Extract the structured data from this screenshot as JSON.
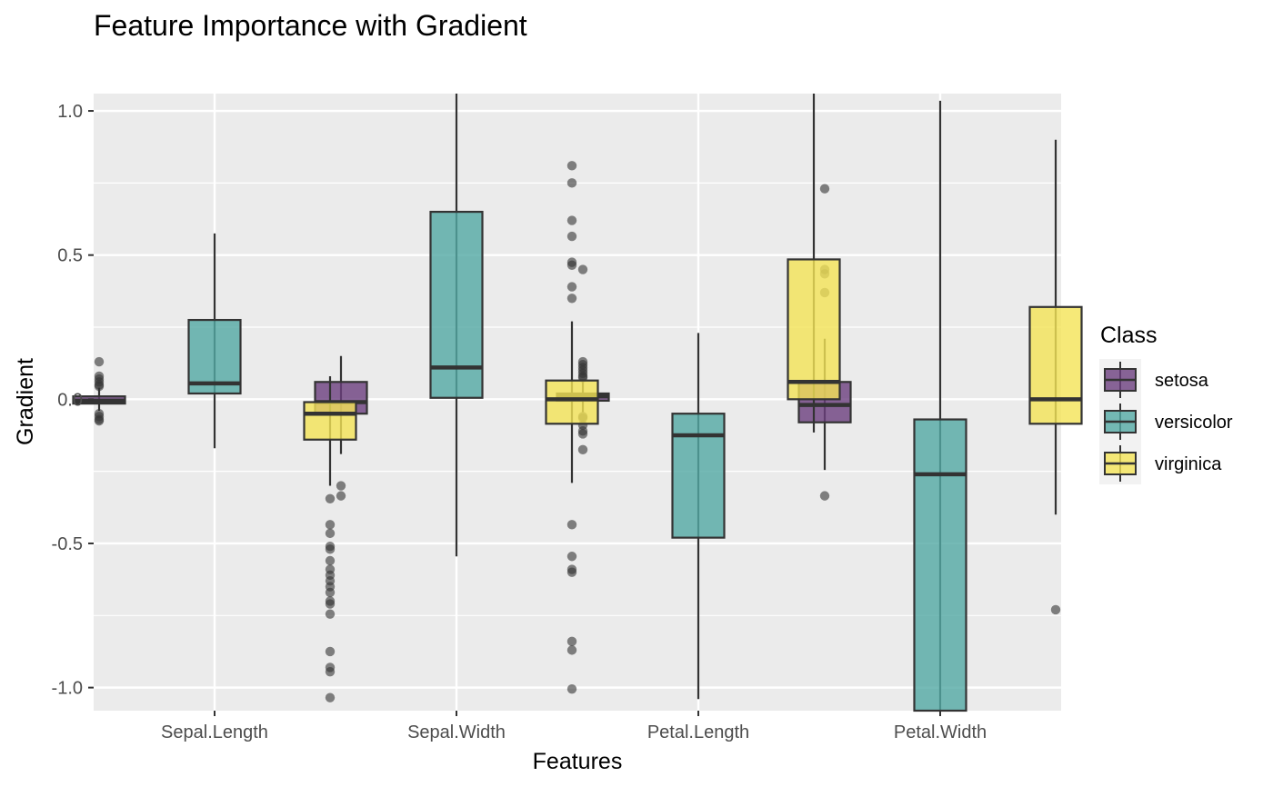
{
  "chart_data": {
    "type": "boxplot",
    "title": "Feature Importance with Gradient",
    "xlabel": "Features",
    "ylabel": "Gradient",
    "ylim": [
      -1.08,
      1.06
    ],
    "yticks": [
      1.0,
      0.5,
      0.0,
      -0.5,
      -1.0
    ],
    "ytick_labels": [
      "1.0",
      "0.5",
      "0.0",
      "-0.5",
      "-1.0"
    ],
    "categories": [
      "Sepal.Length",
      "Sepal.Width",
      "Petal.Length",
      "Petal.Width"
    ],
    "legend": {
      "title": "Class",
      "position": "right",
      "items": [
        {
          "label": "setosa",
          "color": "#6b3f7e"
        },
        {
          "label": "versicolor",
          "color": "#53a9a4"
        },
        {
          "label": "virginica",
          "color": "#f4e456"
        }
      ]
    },
    "grid": true,
    "series": [
      {
        "name": "setosa",
        "color": "#6b3f7e",
        "boxes": [
          {
            "q1": -0.015,
            "median": -0.005,
            "q3": 0.01,
            "whisker_low": -0.04,
            "whisker_high": 0.04,
            "outliers": [
              0.13,
              0.08,
              0.07,
              0.06,
              0.05,
              0.045,
              -0.05,
              -0.06,
              -0.07,
              -0.075
            ]
          },
          {
            "q1": -0.05,
            "median": -0.01,
            "q3": 0.06,
            "whisker_low": -0.19,
            "whisker_high": 0.15,
            "outliers": [
              -0.3,
              -0.335
            ]
          },
          {
            "q1": -0.005,
            "median": 0.01,
            "q3": 0.02,
            "whisker_low": -0.045,
            "whisker_high": 0.06,
            "outliers": [
              0.45,
              0.13,
              0.12,
              0.11,
              0.1,
              0.09,
              0.08,
              0.075,
              -0.06,
              -0.065,
              -0.09,
              -0.11,
              -0.12,
              -0.175
            ]
          },
          {
            "q1": -0.08,
            "median": -0.02,
            "q3": 0.06,
            "whisker_low": -0.245,
            "whisker_high": 0.21,
            "outliers": [
              0.73,
              0.45,
              0.435,
              0.37,
              -0.335
            ]
          }
        ]
      },
      {
        "name": "versicolor",
        "color": "#53a9a4",
        "boxes": [
          {
            "q1": 0.02,
            "median": 0.055,
            "q3": 0.275,
            "whisker_low": -0.17,
            "whisker_high": 0.575,
            "outliers": []
          },
          {
            "q1": 0.005,
            "median": 0.11,
            "q3": 0.65,
            "whisker_low": -0.545,
            "whisker_high": 1.06,
            "outliers": []
          },
          {
            "q1": -0.48,
            "median": -0.125,
            "q3": -0.05,
            "whisker_low": -1.04,
            "whisker_high": 0.23,
            "outliers": []
          },
          {
            "q1": -1.08,
            "median": -0.26,
            "q3": -0.07,
            "whisker_low": -1.08,
            "whisker_high": 1.035,
            "outliers": []
          }
        ]
      },
      {
        "name": "virginica",
        "color": "#f4e456",
        "boxes": [
          {
            "q1": -0.14,
            "median": -0.05,
            "q3": -0.01,
            "whisker_low": -0.3,
            "whisker_high": 0.08,
            "outliers": [
              -0.345,
              -0.435,
              -0.465,
              -0.51,
              -0.52,
              -0.56,
              -0.59,
              -0.61,
              -0.63,
              -0.65,
              -0.67,
              -0.7,
              -0.71,
              -0.745,
              -0.875,
              -0.93,
              -0.945,
              -1.035
            ]
          },
          {
            "q1": -0.085,
            "median": 0.0,
            "q3": 0.065,
            "whisker_low": -0.29,
            "whisker_high": 0.27,
            "outliers": [
              0.81,
              0.75,
              0.62,
              0.565,
              0.475,
              0.465,
              0.39,
              0.35,
              -0.435,
              -0.545,
              -0.59,
              -0.6,
              -0.84,
              -0.87,
              -1.005
            ]
          },
          {
            "q1": 0.0,
            "median": 0.06,
            "q3": 0.485,
            "whisker_low": -0.115,
            "whisker_high": 1.06,
            "outliers": []
          },
          {
            "q1": -0.085,
            "median": 0.0,
            "q3": 0.32,
            "whisker_low": -0.4,
            "whisker_high": 0.9,
            "outliers": [
              -0.73
            ]
          }
        ]
      }
    ]
  }
}
